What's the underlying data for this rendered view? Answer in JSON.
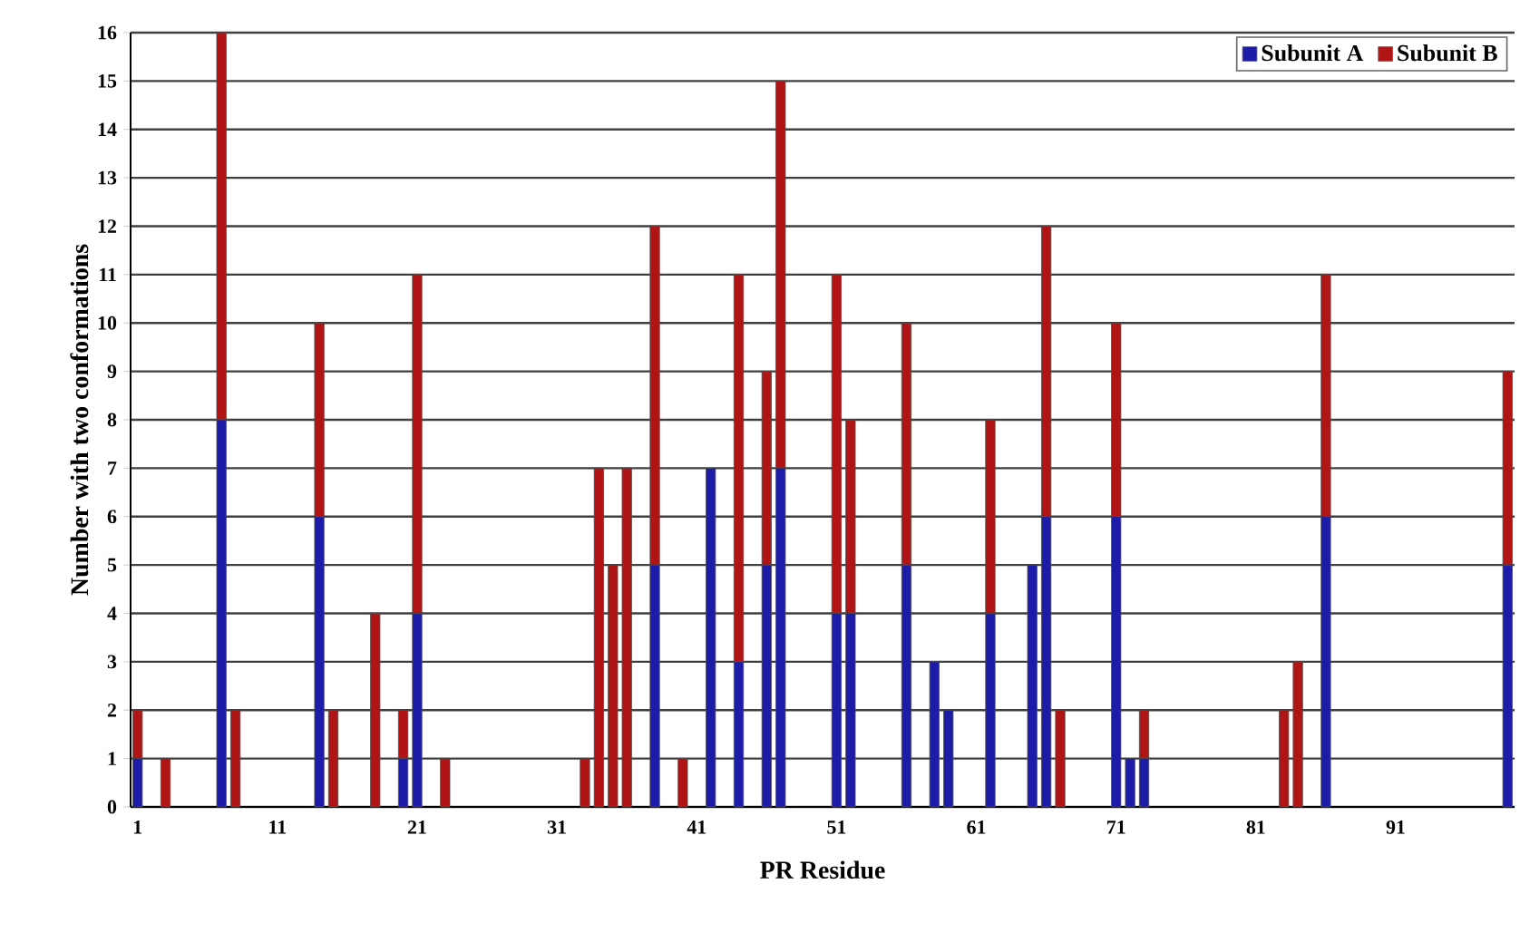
{
  "chart_data": {
    "type": "bar",
    "stacked": true,
    "xlabel": "PR Residue",
    "ylabel": "Number with two conformations",
    "categories": [
      "1",
      null,
      null,
      null,
      null,
      null,
      null,
      null,
      null,
      null,
      "11",
      null,
      null,
      null,
      null,
      null,
      null,
      null,
      null,
      null,
      "21",
      null,
      null,
      null,
      null,
      null,
      null,
      null,
      null,
      null,
      "31",
      null,
      null,
      null,
      null,
      null,
      null,
      null,
      null,
      null,
      "41",
      null,
      null,
      null,
      null,
      null,
      null,
      null,
      null,
      null,
      "51",
      null,
      null,
      null,
      null,
      null,
      null,
      null,
      null,
      null,
      "61",
      null,
      null,
      null,
      null,
      null,
      null,
      null,
      null,
      null,
      "71",
      null,
      null,
      null,
      null,
      null,
      null,
      null,
      null,
      null,
      "81",
      null,
      null,
      null,
      null,
      null,
      null,
      null,
      null,
      null,
      "91",
      null,
      null,
      null,
      null,
      null,
      null,
      null,
      null
    ],
    "series": [
      {
        "name": "Subunit A",
        "color": "#1c1ca8",
        "values": [
          1,
          0,
          0,
          0,
          0,
          0,
          8,
          0,
          0,
          0,
          0,
          0,
          0,
          6,
          0,
          0,
          0,
          0,
          0,
          1,
          4,
          0,
          0,
          0,
          0,
          0,
          0,
          0,
          0,
          0,
          0,
          0,
          0,
          0,
          0,
          0,
          0,
          5,
          0,
          0,
          0,
          7,
          0,
          3,
          0,
          5,
          7,
          0,
          0,
          0,
          4,
          4,
          0,
          0,
          0,
          5,
          0,
          3,
          2,
          0,
          0,
          4,
          0,
          0,
          5,
          6,
          0,
          0,
          0,
          0,
          6,
          1,
          1,
          0,
          0,
          0,
          0,
          0,
          0,
          0,
          0,
          0,
          0,
          0,
          0,
          6,
          0,
          0,
          0,
          0,
          0,
          0,
          0,
          0,
          0,
          0,
          0,
          0,
          5
        ]
      },
      {
        "name": "Subunit B",
        "color": "#b01414",
        "values": [
          1,
          0,
          1,
          0,
          0,
          0,
          8,
          2,
          0,
          0,
          0,
          0,
          0,
          4,
          2,
          0,
          0,
          4,
          0,
          1,
          7,
          0,
          1,
          0,
          0,
          0,
          0,
          0,
          0,
          0,
          0,
          0,
          1,
          7,
          5,
          7,
          0,
          7,
          0,
          1,
          0,
          0,
          0,
          8,
          0,
          4,
          8,
          0,
          0,
          0,
          7,
          4,
          0,
          0,
          0,
          5,
          0,
          0,
          0,
          0,
          0,
          4,
          0,
          0,
          0,
          6,
          2,
          0,
          0,
          0,
          4,
          0,
          1,
          0,
          0,
          0,
          0,
          0,
          0,
          0,
          0,
          0,
          2,
          3,
          0,
          5,
          0,
          0,
          0,
          0,
          0,
          0,
          0,
          0,
          0,
          0,
          0,
          0,
          4
        ]
      }
    ],
    "ylim": [
      0,
      16
    ],
    "yticks": [
      0,
      1,
      2,
      3,
      4,
      5,
      6,
      7,
      8,
      9,
      10,
      11,
      12,
      13,
      14,
      15,
      16
    ],
    "grid": "y",
    "legend": "top right"
  }
}
